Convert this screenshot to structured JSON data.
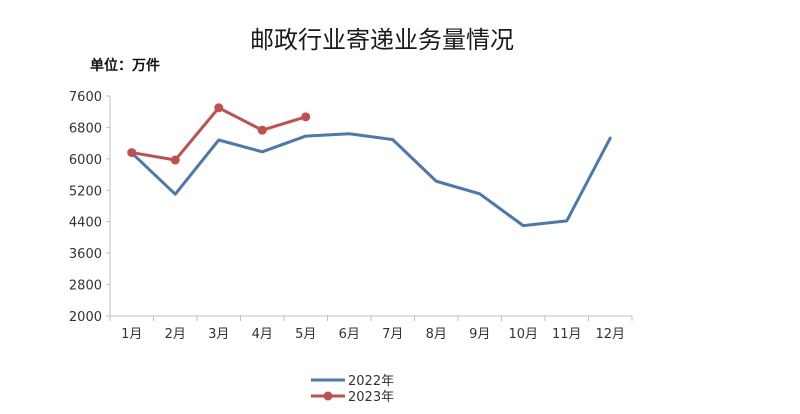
{
  "chart_data": {
    "type": "line",
    "title": "邮政行业寄递业务量情况",
    "unit_label": "单位：万件",
    "categories": [
      "1月",
      "2月",
      "3月",
      "4月",
      "5月",
      "6月",
      "7月",
      "8月",
      "9月",
      "10月",
      "11月",
      "12月"
    ],
    "series": [
      {
        "name": "2022年",
        "color": "#4a78b0",
        "marker": false,
        "values": [
          6150,
          5100,
          6480,
          6180,
          6580,
          6640,
          6490,
          5430,
          5110,
          4300,
          4420,
          6530
        ]
      },
      {
        "name": "2023年",
        "color": "#c0504d",
        "marker": true,
        "values": [
          6160,
          5970,
          7300,
          6730,
          7070,
          null,
          null,
          null,
          null,
          null,
          null,
          null
        ]
      }
    ],
    "yticks": [
      2000,
      2800,
      3600,
      4400,
      5200,
      6000,
      6800,
      7600
    ],
    "ylim": [
      2000,
      7600
    ],
    "grid": false,
    "legend_position": "bottom"
  }
}
